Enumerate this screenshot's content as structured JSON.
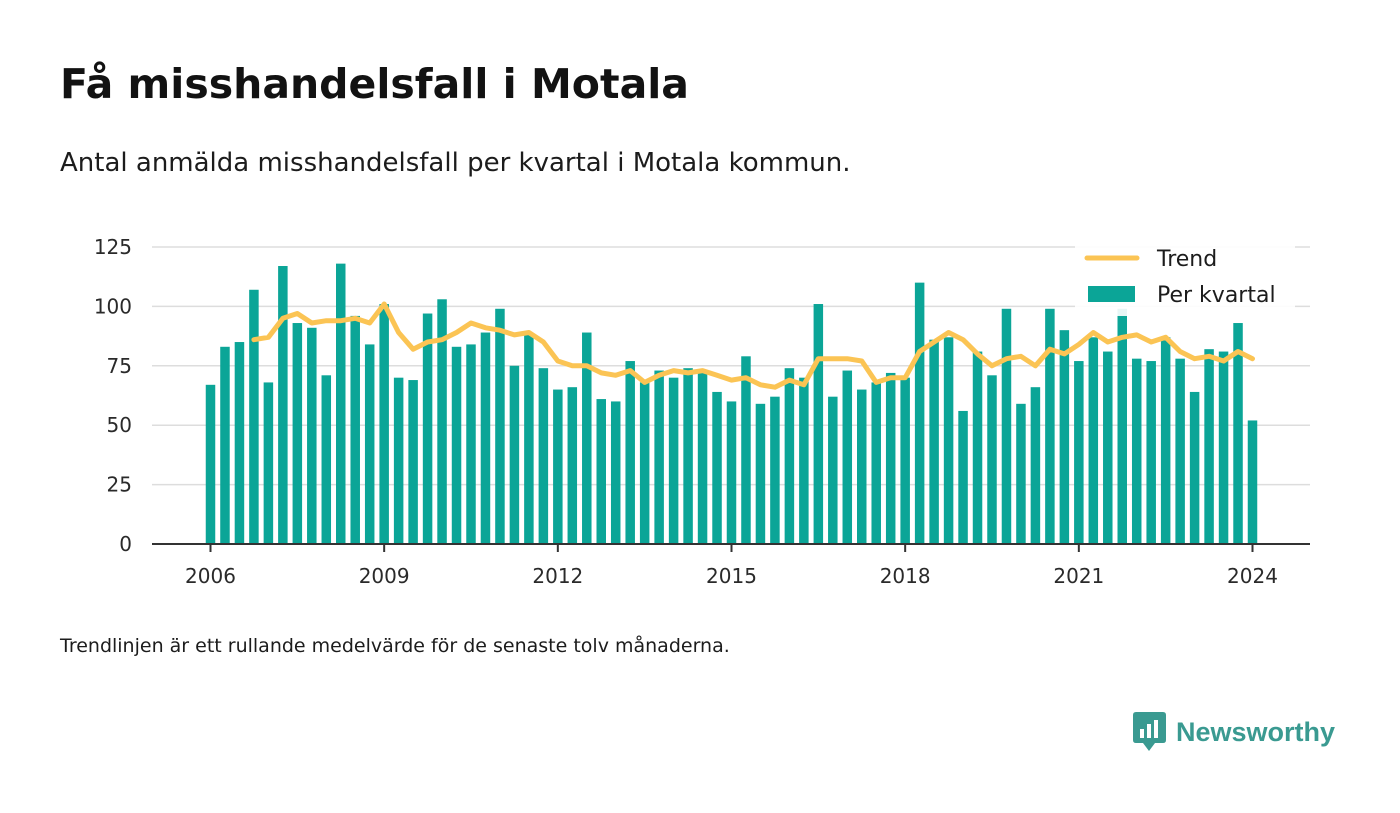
{
  "header": {
    "title": "Få misshandelsfall i Motala",
    "subtitle": "Antal anmälda misshandelsfall per kvartal i Motala kommun."
  },
  "footer": {
    "note": "Trendlinjen är ett rullande medelvärde för de senaste tolv månaderna.",
    "brand": "Newsworthy"
  },
  "colors": {
    "bar": "#0ba597",
    "trend": "#fbc454",
    "grid": "#dddddd",
    "axis": "#333333",
    "brand": "#3a9a91"
  },
  "chart_data": {
    "type": "bar",
    "title": "Få misshandelsfall i Motala",
    "subtitle": "Antal anmälda misshandelsfall per kvartal i Motala kommun.",
    "xlabel": "",
    "ylabel": "",
    "x_ticks": [
      "2006",
      "2009",
      "2012",
      "2015",
      "2018",
      "2021",
      "2024"
    ],
    "y_ticks": [
      0,
      25,
      50,
      75,
      100,
      125
    ],
    "ylim": [
      0,
      125
    ],
    "xlim": [
      "2005-01",
      "2025-01"
    ],
    "grid": true,
    "legend_position": "top-right",
    "legend": [
      {
        "name": "Trend",
        "kind": "line"
      },
      {
        "name": "Per kvartal",
        "kind": "bar"
      }
    ],
    "x_start": "2006-Q1",
    "x_end": "2024-Q1",
    "series": [
      {
        "name": "Per kvartal",
        "type": "bar",
        "values": [
          67,
          83,
          85,
          107,
          68,
          117,
          93,
          91,
          71,
          118,
          96,
          84,
          101,
          70,
          69,
          97,
          103,
          83,
          84,
          89,
          99,
          75,
          88,
          74,
          65,
          66,
          89,
          61,
          60,
          77,
          68,
          73,
          70,
          74,
          72,
          64,
          60,
          79,
          59,
          62,
          74,
          70,
          101,
          62,
          73,
          65,
          68,
          72,
          70,
          110,
          86,
          87,
          56,
          81,
          71,
          99,
          59,
          66,
          99,
          90,
          77,
          87,
          81,
          99,
          78,
          77,
          87,
          78,
          64,
          82,
          81,
          93,
          52
        ]
      },
      {
        "name": "Trend",
        "type": "line",
        "values": [
          null,
          null,
          null,
          86,
          87,
          95,
          97,
          93,
          94,
          94,
          95,
          93,
          101,
          89,
          82,
          85,
          86,
          89,
          93,
          91,
          90,
          88,
          89,
          85,
          77,
          75,
          75,
          72,
          71,
          73,
          68,
          71,
          73,
          72,
          73,
          71,
          69,
          70,
          67,
          66,
          69,
          67,
          78,
          78,
          78,
          77,
          68,
          70,
          70,
          81,
          85,
          89,
          86,
          80,
          75,
          78,
          79,
          75,
          82,
          80,
          84,
          89,
          85,
          87,
          88,
          85,
          87,
          81,
          78,
          79,
          77,
          81,
          78
        ]
      }
    ]
  }
}
